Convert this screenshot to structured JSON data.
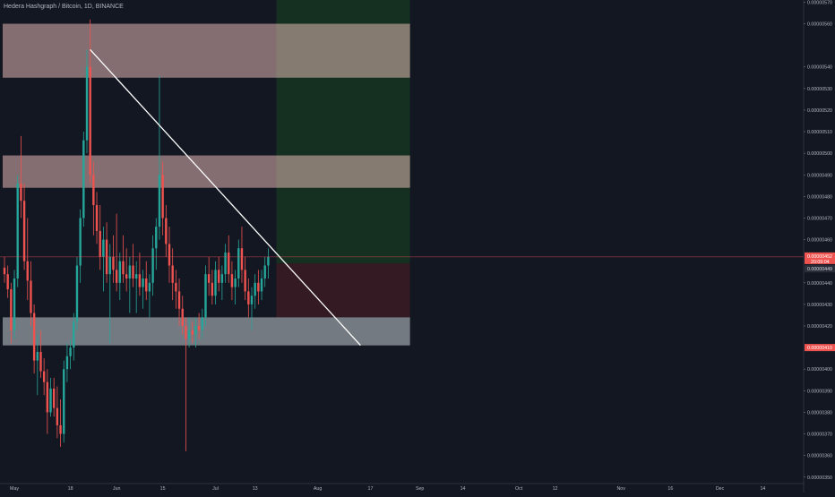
{
  "header": {
    "symbol_title": "Hedera Hashgraph / Bitcoin, 1D, BINANCE"
  },
  "colors": {
    "background": "#131722",
    "up": "#26a69a",
    "down": "#ef5350",
    "axis_text": "#b2b5be",
    "resistance_zone": "#f5c6c0",
    "support_zone": "#d6dde0",
    "target_zone": "#1b5e20",
    "stop_zone": "#4a1d24",
    "trendline": "#ffffff",
    "price_line": "#ef5350"
  },
  "chart_data": {
    "type": "candlestick",
    "symbol": "Hedera Hashgraph / Bitcoin",
    "interval": "1D",
    "exchange": "BINANCE",
    "y_axis": {
      "ticks": [
        "0.00000570",
        "0.00000560",
        "0.00000540",
        "0.00000530",
        "0.00000520",
        "0.00000510",
        "0.00000500",
        "0.00000490",
        "0.00000480",
        "0.00000470",
        "0.00000460",
        "0.00000440",
        "0.00000430",
        "0.00000420",
        "0.00000400",
        "0.00000390",
        "0.00000380",
        "0.00000370",
        "0.00000360",
        "0.00000350"
      ],
      "range": [
        3.47e-06,
        5.71e-06
      ]
    },
    "x_axis": {
      "ticks": [
        {
          "label": "May",
          "date": "2020-05-01"
        },
        {
          "label": "18",
          "date": "2020-05-18"
        },
        {
          "label": "Jun",
          "date": "2020-06-01"
        },
        {
          "label": "15",
          "date": "2020-06-15"
        },
        {
          "label": "Jul",
          "date": "2020-07-01"
        },
        {
          "label": "13",
          "date": "2020-07-13"
        },
        {
          "label": "Aug",
          "date": "2020-08-01"
        },
        {
          "label": "17",
          "date": "2020-08-17"
        },
        {
          "label": "Sep",
          "date": "2020-09-01"
        },
        {
          "label": "14",
          "date": "2020-09-14"
        },
        {
          "label": "Oct",
          "date": "2020-10-01"
        },
        {
          "label": "12",
          "date": "2020-10-12"
        },
        {
          "label": "Nov",
          "date": "2020-11-01"
        },
        {
          "label": "16",
          "date": "2020-11-16"
        },
        {
          "label": "Dec",
          "date": "2020-12-01"
        },
        {
          "label": "14",
          "date": "2020-12-14"
        },
        {
          "label": "2021",
          "date": "2021-01-01"
        },
        {
          "label": "18",
          "date": "2021-01-18"
        }
      ]
    },
    "price_labels": {
      "current_price": "0.00000452",
      "countdown": "20:09:04",
      "target_price": "0.00000449",
      "stop_price": "0.00000410"
    },
    "zones": [
      {
        "kind": "resistance",
        "y_top": 5.6e-06,
        "y_bottom": 5.35e-06,
        "x_start": "2020-04-28",
        "x_end": "2020-08-29"
      },
      {
        "kind": "resistance",
        "y_top": 4.99e-06,
        "y_bottom": 4.84e-06,
        "x_start": "2020-04-28",
        "x_end": "2020-08-29"
      },
      {
        "kind": "support",
        "y_top": 4.24e-06,
        "y_bottom": 4.11e-06,
        "x_start": "2020-04-28",
        "x_end": "2020-08-29"
      },
      {
        "kind": "target",
        "y_top": 5.71e-06,
        "y_bottom": 4.49e-06,
        "x_start": "2020-07-20",
        "x_end": "2020-08-29"
      },
      {
        "kind": "stop",
        "y_top": 4.49e-06,
        "y_bottom": 4.24e-06,
        "x_start": "2020-07-20",
        "x_end": "2020-08-29"
      }
    ],
    "trendline": {
      "x1": "2020-05-24",
      "y1": 5.48e-06,
      "x2": "2020-08-14",
      "y2": 4.11e-06
    },
    "current_price_value": 4.52e-06,
    "candles": [
      {
        "date": "2020-04-28",
        "open": 4.47e-06,
        "high": 4.52e-06,
        "low": 4.4e-06,
        "close": 4.44e-06
      },
      {
        "date": "2020-04-29",
        "open": 4.44e-06,
        "high": 4.48e-06,
        "low": 4.33e-06,
        "close": 4.37e-06
      },
      {
        "date": "2020-04-30",
        "open": 4.37e-06,
        "high": 4.4e-06,
        "low": 4.12e-06,
        "close": 4.18e-06
      },
      {
        "date": "2020-05-01",
        "open": 4.18e-06,
        "high": 4.46e-06,
        "low": 4.14e-06,
        "close": 4.42e-06
      },
      {
        "date": "2020-05-02",
        "open": 4.42e-06,
        "high": 4.9e-06,
        "low": 4.38e-06,
        "close": 4.86e-06
      },
      {
        "date": "2020-05-03",
        "open": 4.86e-06,
        "high": 5.08e-06,
        "low": 4.7e-06,
        "close": 4.78e-06
      },
      {
        "date": "2020-05-04",
        "open": 4.78e-06,
        "high": 4.86e-06,
        "low": 4.46e-06,
        "close": 4.5e-06
      },
      {
        "date": "2020-05-05",
        "open": 4.5e-06,
        "high": 4.7e-06,
        "low": 4.32e-06,
        "close": 4.41e-06
      },
      {
        "date": "2020-05-06",
        "open": 4.41e-06,
        "high": 4.5e-06,
        "low": 4.2e-06,
        "close": 4.26e-06
      },
      {
        "date": "2020-05-07",
        "open": 4.26e-06,
        "high": 4.3e-06,
        "low": 3.98e-06,
        "close": 4.04e-06
      },
      {
        "date": "2020-05-08",
        "open": 4.04e-06,
        "high": 4.16e-06,
        "low": 3.88e-06,
        "close": 4.08e-06
      },
      {
        "date": "2020-05-09",
        "open": 4.08e-06,
        "high": 4.18e-06,
        "low": 3.96e-06,
        "close": 3.99e-06
      },
      {
        "date": "2020-05-10",
        "open": 3.99e-06,
        "high": 4.05e-06,
        "low": 3.88e-06,
        "close": 3.94e-06
      },
      {
        "date": "2020-05-11",
        "open": 3.94e-06,
        "high": 4e-06,
        "low": 3.7e-06,
        "close": 3.8e-06
      },
      {
        "date": "2020-05-12",
        "open": 3.8e-06,
        "high": 3.96e-06,
        "low": 3.78e-06,
        "close": 3.91e-06
      },
      {
        "date": "2020-05-13",
        "open": 3.91e-06,
        "high": 3.96e-06,
        "low": 3.78e-06,
        "close": 3.82e-06
      },
      {
        "date": "2020-05-14",
        "open": 3.82e-06,
        "high": 3.92e-06,
        "low": 3.68e-06,
        "close": 3.74e-06
      },
      {
        "date": "2020-05-15",
        "open": 3.74e-06,
        "high": 3.86e-06,
        "low": 3.64e-06,
        "close": 3.7e-06
      },
      {
        "date": "2020-05-16",
        "open": 3.7e-06,
        "high": 4.04e-06,
        "low": 3.66e-06,
        "close": 4e-06
      },
      {
        "date": "2020-05-17",
        "open": 4e-06,
        "high": 4.12e-06,
        "low": 3.94e-06,
        "close": 4.06e-06
      },
      {
        "date": "2020-05-18",
        "open": 4.06e-06,
        "high": 4.14e-06,
        "low": 4e-06,
        "close": 4.1e-06
      },
      {
        "date": "2020-05-19",
        "open": 4.1e-06,
        "high": 4.26e-06,
        "low": 4.04e-06,
        "close": 4.22e-06
      },
      {
        "date": "2020-05-20",
        "open": 4.22e-06,
        "high": 4.52e-06,
        "low": 4.18e-06,
        "close": 4.48e-06
      },
      {
        "date": "2020-05-21",
        "open": 4.48e-06,
        "high": 4.74e-06,
        "low": 4.4e-06,
        "close": 4.7e-06
      },
      {
        "date": "2020-05-22",
        "open": 4.7e-06,
        "high": 5.1e-06,
        "low": 4.66e-06,
        "close": 5.06e-06
      },
      {
        "date": "2020-05-23",
        "open": 5.06e-06,
        "high": 5.48e-06,
        "low": 5e-06,
        "close": 5.4e-06
      },
      {
        "date": "2020-05-24",
        "open": 5.4e-06,
        "high": 5.62e-06,
        "low": 4.86e-06,
        "close": 4.9e-06
      },
      {
        "date": "2020-05-25",
        "open": 4.9e-06,
        "high": 4.96e-06,
        "low": 4.62e-06,
        "close": 4.76e-06
      },
      {
        "date": "2020-05-26",
        "open": 4.76e-06,
        "high": 4.82e-06,
        "low": 4.58e-06,
        "close": 4.64e-06
      },
      {
        "date": "2020-05-27",
        "open": 4.64e-06,
        "high": 4.76e-06,
        "low": 4.46e-06,
        "close": 4.52e-06
      },
      {
        "date": "2020-05-28",
        "open": 4.52e-06,
        "high": 4.66e-06,
        "low": 4.36e-06,
        "close": 4.6e-06
      },
      {
        "date": "2020-05-29",
        "open": 4.6e-06,
        "high": 4.68e-06,
        "low": 4.4e-06,
        "close": 4.44e-06
      },
      {
        "date": "2020-05-30",
        "open": 4.44e-06,
        "high": 4.58e-06,
        "low": 4.12e-06,
        "close": 4.52e-06
      },
      {
        "date": "2020-05-31",
        "open": 4.52e-06,
        "high": 4.62e-06,
        "low": 4.4e-06,
        "close": 4.46e-06
      },
      {
        "date": "2020-06-01",
        "open": 4.46e-06,
        "high": 4.72e-06,
        "low": 4.36e-06,
        "close": 4.4e-06
      },
      {
        "date": "2020-06-02",
        "open": 4.4e-06,
        "high": 4.54e-06,
        "low": 4.32e-06,
        "close": 4.5e-06
      },
      {
        "date": "2020-06-03",
        "open": 4.5e-06,
        "high": 4.62e-06,
        "low": 4.4e-06,
        "close": 4.44e-06
      },
      {
        "date": "2020-06-04",
        "open": 4.44e-06,
        "high": 4.56e-06,
        "low": 4.36e-06,
        "close": 4.42e-06
      },
      {
        "date": "2020-06-05",
        "open": 4.42e-06,
        "high": 4.52e-06,
        "low": 4.26e-06,
        "close": 4.48e-06
      },
      {
        "date": "2020-06-06",
        "open": 4.48e-06,
        "high": 4.58e-06,
        "low": 4.38e-06,
        "close": 4.42e-06
      },
      {
        "date": "2020-06-07",
        "open": 4.42e-06,
        "high": 4.5e-06,
        "low": 4.26e-06,
        "close": 4.44e-06
      },
      {
        "date": "2020-06-08",
        "open": 4.44e-06,
        "high": 4.54e-06,
        "low": 4.34e-06,
        "close": 4.38e-06
      },
      {
        "date": "2020-06-09",
        "open": 4.38e-06,
        "high": 4.46e-06,
        "low": 4.28e-06,
        "close": 4.42e-06
      },
      {
        "date": "2020-06-10",
        "open": 4.42e-06,
        "high": 4.5e-06,
        "low": 4.32e-06,
        "close": 4.36e-06
      },
      {
        "date": "2020-06-11",
        "open": 4.36e-06,
        "high": 4.44e-06,
        "low": 4.24e-06,
        "close": 4.4e-06
      },
      {
        "date": "2020-06-12",
        "open": 4.4e-06,
        "high": 4.62e-06,
        "low": 4.34e-06,
        "close": 4.56e-06
      },
      {
        "date": "2020-06-13",
        "open": 4.56e-06,
        "high": 4.7e-06,
        "low": 4.46e-06,
        "close": 4.66e-06
      },
      {
        "date": "2020-06-14",
        "open": 4.66e-06,
        "high": 5.36e-06,
        "low": 4.6e-06,
        "close": 4.9e-06
      },
      {
        "date": "2020-06-15",
        "open": 4.9e-06,
        "high": 4.96e-06,
        "low": 4.62e-06,
        "close": 4.7e-06
      },
      {
        "date": "2020-06-16",
        "open": 4.7e-06,
        "high": 4.76e-06,
        "low": 4.52e-06,
        "close": 4.58e-06
      },
      {
        "date": "2020-06-17",
        "open": 4.58e-06,
        "high": 4.66e-06,
        "low": 4.4e-06,
        "close": 4.48e-06
      },
      {
        "date": "2020-06-18",
        "open": 4.48e-06,
        "high": 4.56e-06,
        "low": 4.32e-06,
        "close": 4.4e-06
      },
      {
        "date": "2020-06-19",
        "open": 4.4e-06,
        "high": 4.46e-06,
        "low": 4.28e-06,
        "close": 4.36e-06
      },
      {
        "date": "2020-06-20",
        "open": 4.36e-06,
        "high": 4.42e-06,
        "low": 4.2e-06,
        "close": 4.28e-06
      },
      {
        "date": "2020-06-21",
        "open": 4.28e-06,
        "high": 4.34e-06,
        "low": 4.16e-06,
        "close": 4.2e-06
      },
      {
        "date": "2020-06-22",
        "open": 4.2e-06,
        "high": 4.24e-06,
        "low": 3.62e-06,
        "close": 4.14e-06
      },
      {
        "date": "2020-06-23",
        "open": 4.14e-06,
        "high": 4.24e-06,
        "low": 4.1e-06,
        "close": 4.18e-06
      },
      {
        "date": "2020-06-24",
        "open": 4.18e-06,
        "high": 4.22e-06,
        "low": 4.12e-06,
        "close": 4.16e-06
      },
      {
        "date": "2020-06-25",
        "open": 4.16e-06,
        "high": 4.24e-06,
        "low": 4.1e-06,
        "close": 4.2e-06
      },
      {
        "date": "2020-06-26",
        "open": 4.2e-06,
        "high": 4.26e-06,
        "low": 4.14e-06,
        "close": 4.18e-06
      },
      {
        "date": "2020-06-27",
        "open": 4.18e-06,
        "high": 4.28e-06,
        "low": 4.14e-06,
        "close": 4.24e-06
      },
      {
        "date": "2020-06-28",
        "open": 4.24e-06,
        "high": 4.48e-06,
        "low": 4.2e-06,
        "close": 4.44e-06
      },
      {
        "date": "2020-06-29",
        "open": 4.44e-06,
        "high": 4.52e-06,
        "low": 4.34e-06,
        "close": 4.4e-06
      },
      {
        "date": "2020-06-30",
        "open": 4.4e-06,
        "high": 4.46e-06,
        "low": 4.3e-06,
        "close": 4.34e-06
      },
      {
        "date": "2020-07-01",
        "open": 4.34e-06,
        "high": 4.5e-06,
        "low": 4.3e-06,
        "close": 4.46e-06
      },
      {
        "date": "2020-07-02",
        "open": 4.46e-06,
        "high": 4.52e-06,
        "low": 4.36e-06,
        "close": 4.4e-06
      },
      {
        "date": "2020-07-03",
        "open": 4.4e-06,
        "high": 4.48e-06,
        "low": 4.32e-06,
        "close": 4.44e-06
      },
      {
        "date": "2020-07-04",
        "open": 4.44e-06,
        "high": 4.58e-06,
        "low": 4.4e-06,
        "close": 4.54e-06
      },
      {
        "date": "2020-07-05",
        "open": 4.54e-06,
        "high": 4.62e-06,
        "low": 4.4e-06,
        "close": 4.44e-06
      },
      {
        "date": "2020-07-06",
        "open": 4.44e-06,
        "high": 4.5e-06,
        "low": 4.32e-06,
        "close": 4.38e-06
      },
      {
        "date": "2020-07-07",
        "open": 4.38e-06,
        "high": 4.46e-06,
        "low": 4.3e-06,
        "close": 4.42e-06
      },
      {
        "date": "2020-07-08",
        "open": 4.42e-06,
        "high": 4.6e-06,
        "low": 4.38e-06,
        "close": 4.56e-06
      },
      {
        "date": "2020-07-09",
        "open": 4.56e-06,
        "high": 4.66e-06,
        "low": 4.4e-06,
        "close": 4.46e-06
      },
      {
        "date": "2020-07-10",
        "open": 4.46e-06,
        "high": 4.52e-06,
        "low": 4.32e-06,
        "close": 4.36e-06
      },
      {
        "date": "2020-07-11",
        "open": 4.36e-06,
        "high": 4.42e-06,
        "low": 4.24e-06,
        "close": 4.3e-06
      },
      {
        "date": "2020-07-12",
        "open": 4.3e-06,
        "high": 4.38e-06,
        "low": 4.18e-06,
        "close": 4.34e-06
      },
      {
        "date": "2020-07-13",
        "open": 4.34e-06,
        "high": 4.44e-06,
        "low": 4.28e-06,
        "close": 4.4e-06
      },
      {
        "date": "2020-07-14",
        "open": 4.4e-06,
        "high": 4.46e-06,
        "low": 4.3e-06,
        "close": 4.36e-06
      },
      {
        "date": "2020-07-15",
        "open": 4.36e-06,
        "high": 4.46e-06,
        "low": 4.32e-06,
        "close": 4.42e-06
      },
      {
        "date": "2020-07-16",
        "open": 4.42e-06,
        "high": 4.52e-06,
        "low": 4.38e-06,
        "close": 4.48e-06
      },
      {
        "date": "2020-07-17",
        "open": 4.48e-06,
        "high": 4.56e-06,
        "low": 4.42e-06,
        "close": 4.52e-06
      }
    ]
  }
}
